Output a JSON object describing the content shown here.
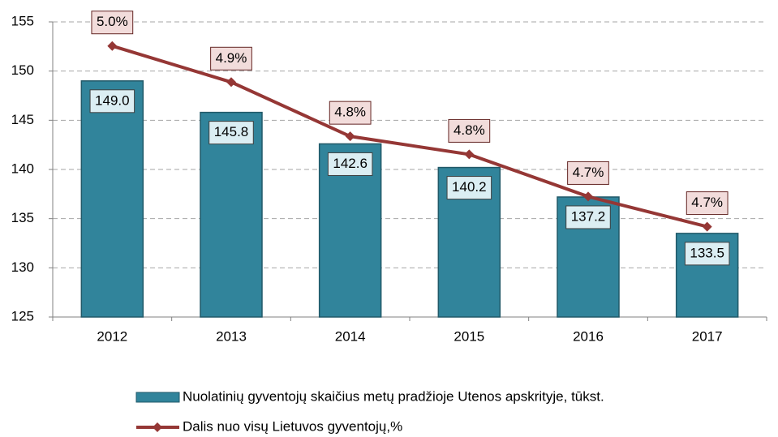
{
  "chart_data": {
    "type": "bar-line",
    "categories": [
      "2012",
      "2013",
      "2014",
      "2015",
      "2016",
      "2017"
    ],
    "series": [
      {
        "name": "Nuolatinių gyventojų skaičius metų pradžioje Utenos apskrityje, tūkst.",
        "type": "bar",
        "color": "#31849b",
        "values": [
          149.0,
          145.8,
          142.6,
          140.2,
          137.2,
          133.5
        ],
        "value_labels": [
          "149.0",
          "145.8",
          "142.6",
          "140.2",
          "137.2",
          "133.5"
        ]
      },
      {
        "name": "Dalis nuo visų Lietuvos gyventojų,%",
        "type": "line",
        "axis": "y2",
        "color": "#953735",
        "values": [
          4.99,
          4.93,
          4.84,
          4.81,
          4.74,
          4.69
        ],
        "value_labels": [
          "5.0%",
          "4.9%",
          "4.8%",
          "4.8%",
          "4.7%",
          "4.7%"
        ]
      }
    ],
    "ylim": [
      125,
      155
    ],
    "yticks": [
      125,
      130,
      135,
      140,
      145,
      150,
      155
    ],
    "y2lim": [
      4.54,
      5.03
    ],
    "grid": true,
    "legend": "bottom"
  }
}
